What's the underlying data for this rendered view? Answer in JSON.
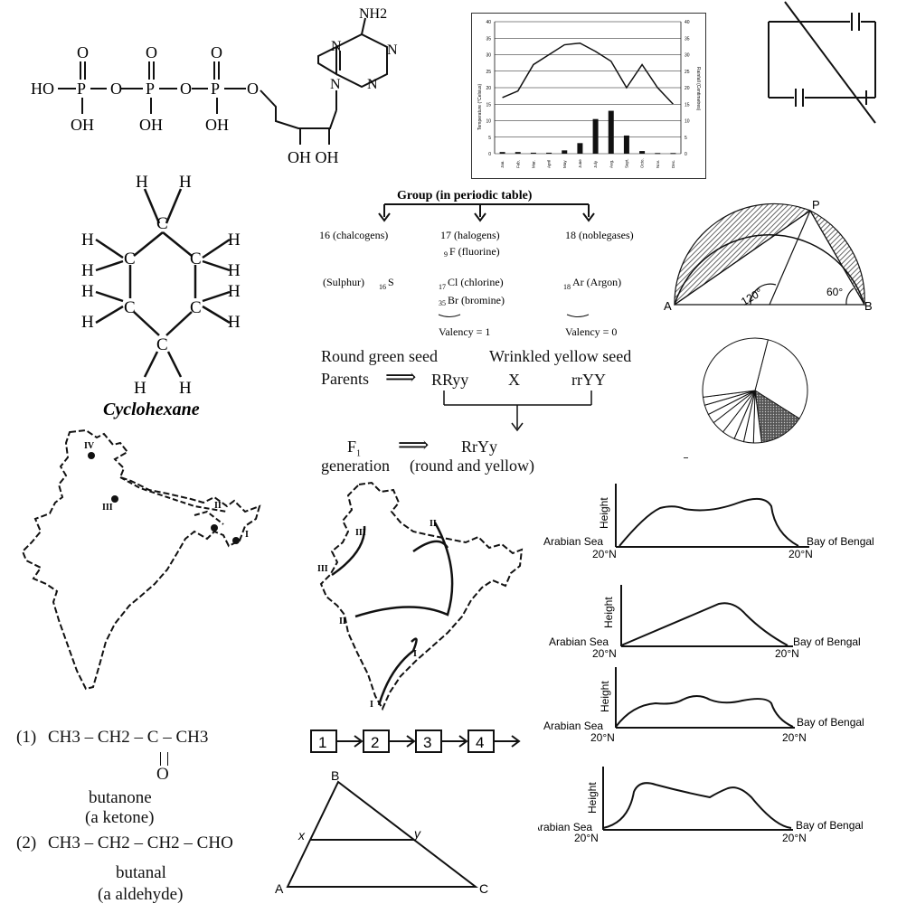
{
  "atp": {
    "nh2": "NH2",
    "ho": "HO",
    "p": "P",
    "o": "O",
    "oh": "OH",
    "n": "N",
    "ribose_oh": "OH OH"
  },
  "climate_chart": {
    "ylabel_left": "Temperature (°Celsius)",
    "ylabel_right": "Rainfall (Centimetres)",
    "months": [
      "Jan.",
      "Feb.",
      "Mar.",
      "April",
      "May",
      "June",
      "July",
      "Aug.",
      "Sept.",
      "Octo.",
      "Nov.",
      "Dec."
    ]
  },
  "chart_data": [
    {
      "type": "line",
      "title": "",
      "xlabel": "",
      "ylabel": "Temperature (°Celsius)",
      "categories": [
        "Jan.",
        "Feb.",
        "Mar.",
        "April",
        "May",
        "June",
        "July",
        "Aug.",
        "Sept.",
        "Octo.",
        "Nov.",
        "Dec."
      ],
      "values": [
        17,
        19,
        27,
        30,
        33,
        33.5,
        31,
        28,
        20,
        27,
        20,
        15
      ],
      "ylim": [
        0,
        40
      ],
      "grid": true
    },
    {
      "type": "bar",
      "title": "",
      "xlabel": "",
      "ylabel": "Rainfall (Centimetres)",
      "categories": [
        "Jan.",
        "Feb.",
        "Mar.",
        "April",
        "May",
        "June",
        "July",
        "Aug.",
        "Sept.",
        "Octo.",
        "Nov.",
        "Dec."
      ],
      "values": [
        0.5,
        0.5,
        0.3,
        0.3,
        1,
        3.2,
        10.5,
        13,
        5.5,
        0.8,
        0.2,
        0.2
      ],
      "ylim": [
        0,
        40
      ],
      "grid": true
    },
    {
      "type": "pie",
      "title": "",
      "values": [
        30,
        14,
        2.5,
        3,
        3,
        4,
        4,
        3,
        3,
        2.5,
        31
      ]
    }
  ],
  "cyclohexane": {
    "h": "H",
    "c": "C",
    "name": "Cyclohexane"
  },
  "group": {
    "title": "Group (in periodic table)",
    "col16": "16 (chalcogens)",
    "col17": "17 (halogens)",
    "col18": "18 (noblegases)",
    "fluorine_num": "9",
    "fluorine": "F (fluorine)",
    "sulphur": "(Sulphur)",
    "sulphur_num": "16",
    "sulphur_sym": "S",
    "chlorine_num": "17",
    "chlorine": "Cl (chlorine)",
    "bromine_num": "35",
    "bromine": "Br (bromine)",
    "argon_num": "18",
    "argon": "Ar (Argon)",
    "valency1": "Valency = 1",
    "valency0": "Valency = 0"
  },
  "semicircle": {
    "p": "P",
    "a": "A",
    "b": "B",
    "angle1": "120°",
    "angle2": "60°"
  },
  "genetics": {
    "round_green": "Round green seed",
    "wrinkled_yellow": "Wrinkled yellow seed",
    "parents": "Parents",
    "arrow": "⟹",
    "rryy1": "RRyy",
    "x": "X",
    "rryy2": "rrYY",
    "f": "F",
    "f_sub": "1",
    "rryy3": "RrYy",
    "generation": "generation",
    "round_yellow": "(round and yellow)"
  },
  "map1": {
    "iv": "IV",
    "iii": "III",
    "ii": "II",
    "i": "I"
  },
  "map2": {
    "iii_a": "III",
    "iii_b": "III",
    "ii_a": "II",
    "ii_b": "II",
    "i_a": "I",
    "i_b": "I"
  },
  "profiles": {
    "height": "Height",
    "arabian": "Arabian Sea",
    "bengal": "Bay of Bengal",
    "lat": "20°N"
  },
  "sequence": {
    "boxes": [
      "1",
      "2",
      "3",
      "4"
    ]
  },
  "ketone": {
    "num1": "(1)",
    "formula1": "CH3 – CH2 – C – CH3",
    "o": "O",
    "name1": "butanone",
    "class1": "(a ketone)",
    "num2": "(2)",
    "formula2": "CH3 – CH2 – CH2 – CHO",
    "name2": "butanal",
    "class2": "(a aldehyde)"
  },
  "triangle": {
    "a": "A",
    "b": "B",
    "c": "C",
    "x": "x",
    "y": "y"
  }
}
